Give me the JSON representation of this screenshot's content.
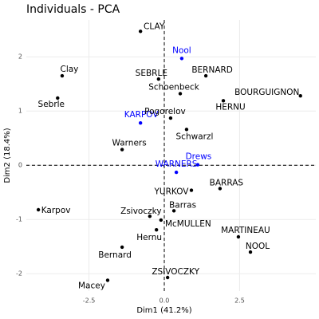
{
  "chart_data": {
    "type": "scatter",
    "title": "Individuals - PCA",
    "x_label": "Dim1 (41.2%)",
    "y_label": "Dim2 (18.4%)",
    "xlim": [
      -4.58,
      5.03
    ],
    "ylim": [
      -2.32,
      2.68
    ],
    "xticks": [
      -2.5,
      {
        "value": 0,
        "label": "0.0"
      },
      2.5
    ],
    "yticks": [
      -2,
      -1,
      0,
      1,
      2
    ],
    "grid": true,
    "points": [
      {
        "label": "CLAY",
        "x": -0.79,
        "y": 2.47,
        "color": "#000000"
      },
      {
        "label": "Nool",
        "x": 0.58,
        "y": 1.97,
        "color": "#0000ff"
      },
      {
        "label": "Clay",
        "x": -3.39,
        "y": 1.65,
        "color": "#000000"
      },
      {
        "label": "SEBRLE",
        "x": -0.19,
        "y": 1.59,
        "color": "#000000"
      },
      {
        "label": "BERNARD",
        "x": 1.38,
        "y": 1.65,
        "color": "#000000"
      },
      {
        "label": "Schoenbeck",
        "x": 0.53,
        "y": 1.32,
        "color": "#000000"
      },
      {
        "label": "BOURGUIGNON",
        "x": 4.52,
        "y": 1.28,
        "color": "#000000"
      },
      {
        "label": "Sebrle",
        "x": -3.54,
        "y": 1.24,
        "color": "#000000"
      },
      {
        "label": "HERNU",
        "x": 1.96,
        "y": 1.19,
        "color": "#000000"
      },
      {
        "label": "KARPOV",
        "x": -0.79,
        "y": 0.78,
        "color": "#0000ff"
      },
      {
        "label": "Pogorelov",
        "x": 0.21,
        "y": 0.87,
        "color": "#000000"
      },
      {
        "label": "Schwarzl",
        "x": 0.74,
        "y": 0.66,
        "color": "#000000"
      },
      {
        "label": "Warners",
        "x": -1.4,
        "y": 0.29,
        "color": "#000000"
      },
      {
        "label": "Drews",
        "x": 1.11,
        "y": 0.01,
        "color": "#0000ff"
      },
      {
        "label": "WARNERS",
        "x": 0.4,
        "y": -0.13,
        "color": "#0000ff"
      },
      {
        "label": "YURKOV",
        "x": 0.9,
        "y": -0.46,
        "color": "#000000"
      },
      {
        "label": "BARRAS",
        "x": 1.85,
        "y": -0.43,
        "color": "#000000"
      },
      {
        "label": "Barras",
        "x": 0.32,
        "y": -0.84,
        "color": "#000000"
      },
      {
        "label": "Zsivoczky",
        "x": -0.48,
        "y": -0.94,
        "color": "#000000"
      },
      {
        "label": "Karpov",
        "x": -4.18,
        "y": -0.82,
        "color": "#000000"
      },
      {
        "label": "McMULLEN",
        "x": -0.11,
        "y": -1.01,
        "color": "#000000"
      },
      {
        "label": "MARTINEAU",
        "x": 2.46,
        "y": -1.32,
        "color": "#000000"
      },
      {
        "label": "Hernu",
        "x": -0.26,
        "y": -1.19,
        "color": "#000000"
      },
      {
        "label": "NOOL",
        "x": 2.86,
        "y": -1.6,
        "color": "#000000"
      },
      {
        "label": "Bernard",
        "x": -1.4,
        "y": -1.51,
        "color": "#000000"
      },
      {
        "label": "ZSIVOCZKY",
        "x": 0.11,
        "y": -2.07,
        "color": "#000000"
      },
      {
        "label": "Macey",
        "x": -1.88,
        "y": -2.12,
        "color": "#000000"
      }
    ]
  }
}
